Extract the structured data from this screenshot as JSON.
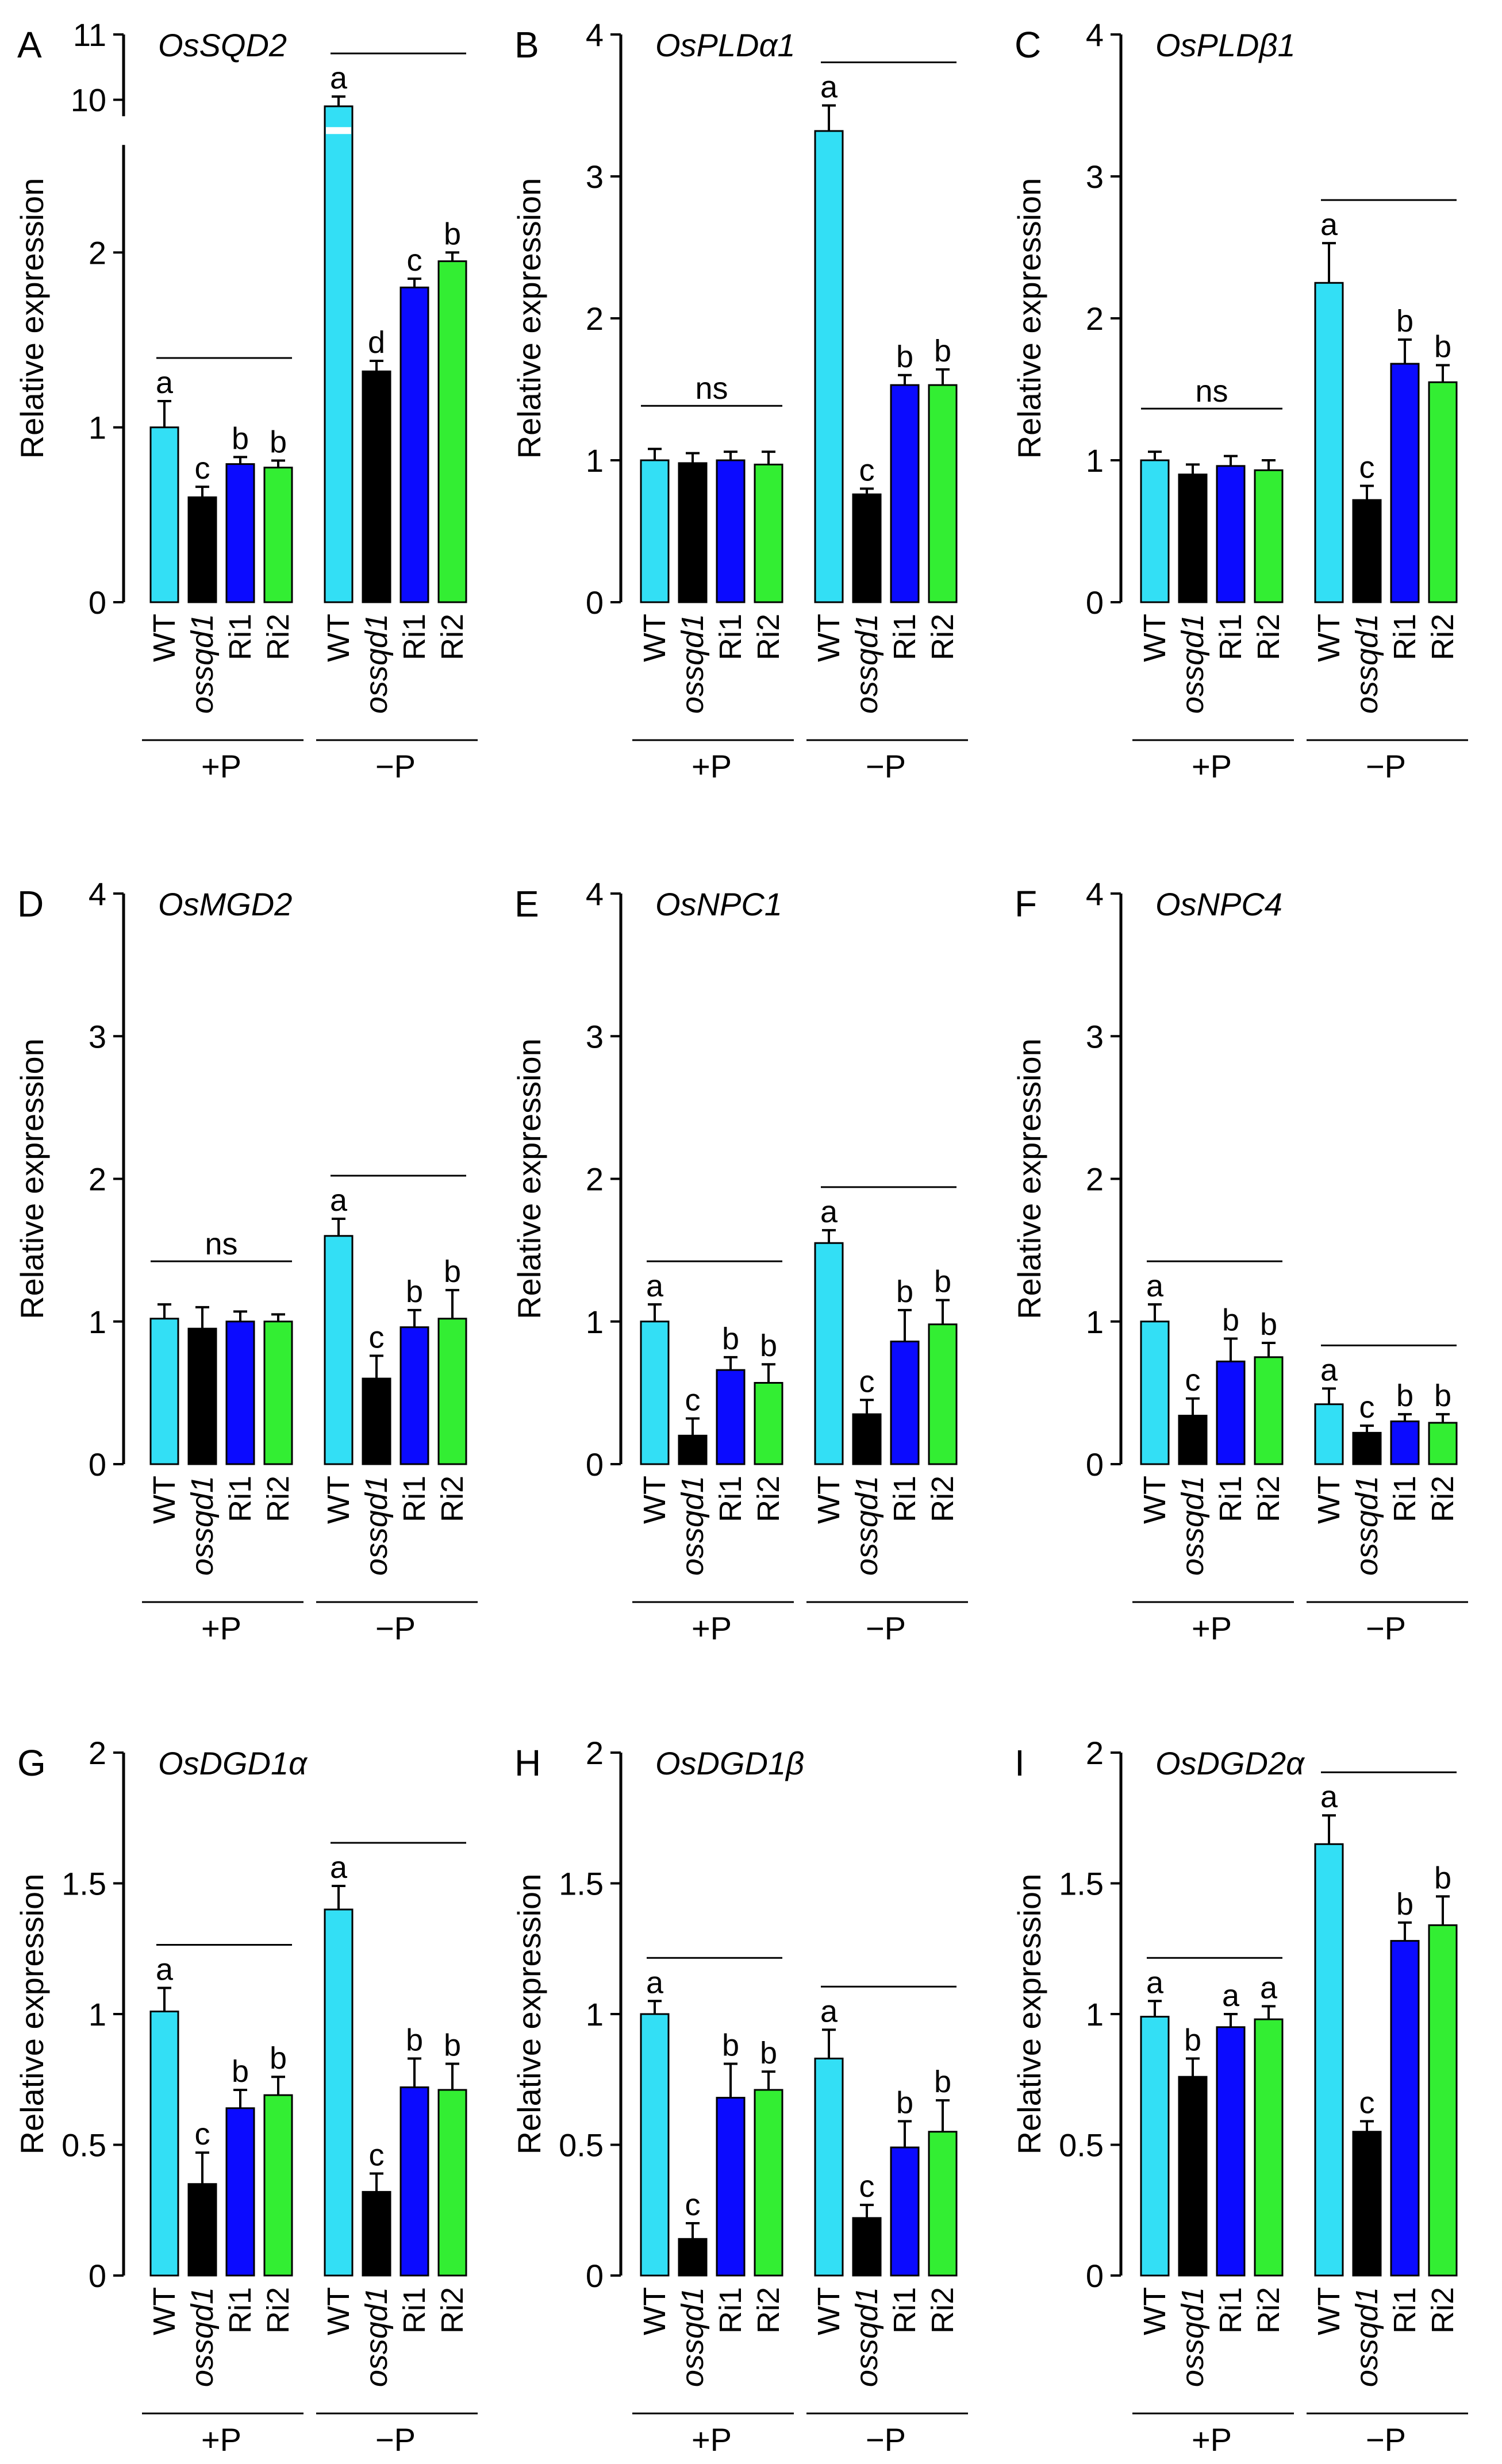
{
  "figure": {
    "panel_count": 9
  },
  "colors": {
    "WT": "#33dff5",
    "ossqd1": "#000000",
    "Ri1": "#0b0bff",
    "Ri2": "#33ee33"
  },
  "chart_data": [
    {
      "type": "bar",
      "panel_letter": "A",
      "title": "OsSQD2",
      "ylabel": "Relative expression",
      "ylim": [
        0,
        11
      ],
      "yticks": [
        0,
        1,
        2,
        10,
        11
      ],
      "axis_break": {
        "lower": [
          0,
          2.5
        ],
        "upper": [
          9,
          11
        ]
      },
      "categories": [
        "WT",
        "ossqd1",
        "Ri1",
        "Ri2"
      ],
      "groups": [
        {
          "label": "+P",
          "values": [
            1.0,
            0.6,
            0.79,
            0.77
          ],
          "errors": [
            0.15,
            0.06,
            0.04,
            0.04
          ],
          "letters": [
            "a",
            "c",
            "b",
            "b"
          ],
          "overline": true,
          "ns": ""
        },
        {
          "label": "−P",
          "values": [
            9.9,
            1.32,
            1.8,
            1.95
          ],
          "errors": [
            0.15,
            0.06,
            0.05,
            0.05
          ],
          "letters": [
            "a",
            "d",
            "c",
            "b"
          ],
          "overline": true,
          "ns": ""
        }
      ]
    },
    {
      "type": "bar",
      "panel_letter": "B",
      "title": "OsPLDα1",
      "ylabel": "Relative expression",
      "ylim": [
        0,
        4
      ],
      "yticks": [
        0,
        1,
        2,
        3,
        4
      ],
      "categories": [
        "WT",
        "ossqd1",
        "Ri1",
        "Ri2"
      ],
      "groups": [
        {
          "label": "+P",
          "values": [
            1.0,
            0.98,
            1.0,
            0.97
          ],
          "errors": [
            0.08,
            0.07,
            0.06,
            0.09
          ],
          "letters": [
            "",
            "",
            "",
            ""
          ],
          "overline": true,
          "ns": "ns"
        },
        {
          "label": "−P",
          "values": [
            3.32,
            0.76,
            1.53,
            1.53
          ],
          "errors": [
            0.18,
            0.04,
            0.07,
            0.11
          ],
          "letters": [
            "a",
            "c",
            "b",
            "b"
          ],
          "overline": true,
          "ns": ""
        }
      ]
    },
    {
      "type": "bar",
      "panel_letter": "C",
      "title": "OsPLDβ1",
      "ylabel": "Relative expression",
      "ylim": [
        0,
        4
      ],
      "yticks": [
        0,
        1,
        2,
        3,
        4
      ],
      "categories": [
        "WT",
        "ossqd1",
        "Ri1",
        "Ri2"
      ],
      "groups": [
        {
          "label": "+P",
          "values": [
            1.0,
            0.9,
            0.96,
            0.93
          ],
          "errors": [
            0.06,
            0.07,
            0.07,
            0.07
          ],
          "letters": [
            "",
            "",
            "",
            ""
          ],
          "overline": true,
          "ns": "ns"
        },
        {
          "label": "−P",
          "values": [
            2.25,
            0.72,
            1.68,
            1.55
          ],
          "errors": [
            0.28,
            0.1,
            0.17,
            0.12
          ],
          "letters": [
            "a",
            "c",
            "b",
            "b"
          ],
          "overline": true,
          "ns": ""
        }
      ]
    },
    {
      "type": "bar",
      "panel_letter": "D",
      "title": "OsMGD2",
      "ylabel": "Relative expression",
      "ylim": [
        0,
        4
      ],
      "yticks": [
        0,
        1,
        2,
        3,
        4
      ],
      "categories": [
        "WT",
        "ossqd1",
        "Ri1",
        "Ri2"
      ],
      "groups": [
        {
          "label": "+P",
          "values": [
            1.02,
            0.95,
            1.0,
            1.0
          ],
          "errors": [
            0.1,
            0.15,
            0.07,
            0.05
          ],
          "letters": [
            "",
            "",
            "",
            ""
          ],
          "overline": true,
          "ns": "ns"
        },
        {
          "label": "−P",
          "values": [
            1.6,
            0.6,
            0.96,
            1.02
          ],
          "errors": [
            0.12,
            0.16,
            0.12,
            0.2
          ],
          "letters": [
            "a",
            "c",
            "b",
            "b"
          ],
          "overline": true,
          "ns": ""
        }
      ]
    },
    {
      "type": "bar",
      "panel_letter": "E",
      "title": "OsNPC1",
      "ylabel": "Relative expression",
      "ylim": [
        0,
        4
      ],
      "yticks": [
        0,
        1,
        2,
        3,
        4
      ],
      "categories": [
        "WT",
        "ossqd1",
        "Ri1",
        "Ri2"
      ],
      "groups": [
        {
          "label": "+P",
          "values": [
            1.0,
            0.2,
            0.66,
            0.57
          ],
          "errors": [
            0.12,
            0.12,
            0.09,
            0.13
          ],
          "letters": [
            "a",
            "c",
            "b",
            "b"
          ],
          "overline": true,
          "ns": ""
        },
        {
          "label": "−P",
          "values": [
            1.55,
            0.35,
            0.86,
            0.98
          ],
          "errors": [
            0.09,
            0.1,
            0.22,
            0.17
          ],
          "letters": [
            "a",
            "c",
            "b",
            "b"
          ],
          "overline": true,
          "ns": ""
        }
      ]
    },
    {
      "type": "bar",
      "panel_letter": "F",
      "title": "OsNPC4",
      "ylabel": "Relative expression",
      "ylim": [
        0,
        4
      ],
      "yticks": [
        0,
        1,
        2,
        3,
        4
      ],
      "categories": [
        "WT",
        "ossqd1",
        "Ri1",
        "Ri2"
      ],
      "groups": [
        {
          "label": "+P",
          "values": [
            1.0,
            0.34,
            0.72,
            0.75
          ],
          "errors": [
            0.12,
            0.12,
            0.16,
            0.1
          ],
          "letters": [
            "a",
            "c",
            "b",
            "b"
          ],
          "overline": true,
          "ns": ""
        },
        {
          "label": "−P",
          "values": [
            0.42,
            0.22,
            0.3,
            0.29
          ],
          "errors": [
            0.11,
            0.05,
            0.05,
            0.06
          ],
          "letters": [
            "a",
            "c",
            "b",
            "b"
          ],
          "overline": true,
          "ns": ""
        }
      ]
    },
    {
      "type": "bar",
      "panel_letter": "G",
      "title": "OsDGD1α",
      "ylabel": "Relative expression",
      "ylim": [
        0,
        2
      ],
      "yticks": [
        0,
        0.5,
        1,
        1.5,
        2
      ],
      "categories": [
        "WT",
        "ossqd1",
        "Ri1",
        "Ri2"
      ],
      "groups": [
        {
          "label": "+P",
          "values": [
            1.01,
            0.35,
            0.64,
            0.69
          ],
          "errors": [
            0.09,
            0.12,
            0.07,
            0.07
          ],
          "letters": [
            "a",
            "c",
            "b",
            "b"
          ],
          "overline": true,
          "ns": ""
        },
        {
          "label": "−P",
          "values": [
            1.4,
            0.32,
            0.72,
            0.71
          ],
          "errors": [
            0.09,
            0.07,
            0.11,
            0.1
          ],
          "letters": [
            "a",
            "c",
            "b",
            "b"
          ],
          "overline": true,
          "ns": ""
        }
      ]
    },
    {
      "type": "bar",
      "panel_letter": "H",
      "title": "OsDGD1β",
      "ylabel": "Relative expression",
      "ylim": [
        0,
        2
      ],
      "yticks": [
        0,
        0.5,
        1,
        1.5,
        2
      ],
      "categories": [
        "WT",
        "ossqd1",
        "Ri1",
        "Ri2"
      ],
      "groups": [
        {
          "label": "+P",
          "values": [
            1.0,
            0.14,
            0.68,
            0.71
          ],
          "errors": [
            0.05,
            0.06,
            0.13,
            0.07
          ],
          "letters": [
            "a",
            "c",
            "b",
            "b"
          ],
          "overline": true,
          "ns": ""
        },
        {
          "label": "−P",
          "values": [
            0.83,
            0.22,
            0.49,
            0.55
          ],
          "errors": [
            0.11,
            0.05,
            0.1,
            0.12
          ],
          "letters": [
            "a",
            "c",
            "b",
            "b"
          ],
          "overline": true,
          "ns": ""
        }
      ]
    },
    {
      "type": "bar",
      "panel_letter": "I",
      "title": "OsDGD2α",
      "ylabel": "Relative expression",
      "ylim": [
        0,
        2
      ],
      "yticks": [
        0,
        0.5,
        1,
        1.5,
        2
      ],
      "categories": [
        "WT",
        "ossqd1",
        "Ri1",
        "Ri2"
      ],
      "groups": [
        {
          "label": "+P",
          "values": [
            0.99,
            0.76,
            0.95,
            0.98
          ],
          "errors": [
            0.06,
            0.07,
            0.05,
            0.05
          ],
          "letters": [
            "a",
            "b",
            "a",
            "a"
          ],
          "overline": true,
          "ns": ""
        },
        {
          "label": "−P",
          "values": [
            1.65,
            0.55,
            1.28,
            1.34
          ],
          "errors": [
            0.11,
            0.04,
            0.07,
            0.11
          ],
          "letters": [
            "a",
            "c",
            "b",
            "b"
          ],
          "overline": true,
          "ns": ""
        }
      ]
    }
  ]
}
